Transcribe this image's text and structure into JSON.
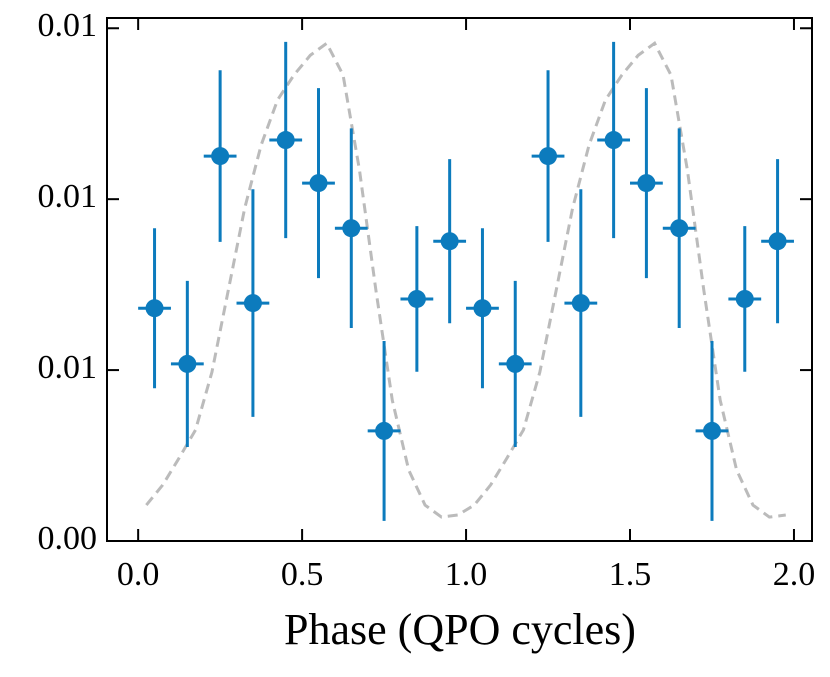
{
  "chart_data": {
    "type": "errorbar",
    "x_label": "Phase (QPO cycles)",
    "xlim": [
      -0.095,
      2.055
    ],
    "ylim": [
      0,
      0.0153
    ],
    "xticks": [
      {
        "value": 0,
        "label": "0.0"
      },
      {
        "value": 0.5,
        "label": "0.5"
      },
      {
        "value": 1,
        "label": "1.0"
      },
      {
        "value": 1.5,
        "label": "1.5"
      },
      {
        "value": 2,
        "label": "2.0"
      }
    ],
    "yticks": [
      {
        "value": 0,
        "label": "0.00"
      },
      {
        "value": 0.005,
        "label": "0.01"
      },
      {
        "value": 0.01,
        "label": "0.01"
      },
      {
        "value": 0.015,
        "label": "0.01"
      }
    ],
    "series": [
      {
        "color": "#0C7BBD",
        "x": [
          0.05,
          0.15,
          0.25,
          0.35,
          0.45,
          0.55,
          0.65,
          0.75,
          0.85,
          0.95,
          1.05,
          1.15,
          1.25,
          1.35,
          1.45,
          1.55,
          1.65,
          1.75,
          1.85,
          1.95
        ],
        "values": [
          0.00681,
          0.00518,
          0.01126,
          0.00696,
          0.01173,
          0.01047,
          0.00915,
          0.00322,
          0.00708,
          0.00877,
          0.00681,
          0.00518,
          0.01126,
          0.00696,
          0.01173,
          0.01047,
          0.00915,
          0.00322,
          0.00708,
          0.00877
        ],
        "errors": [
          0.00234,
          0.00243,
          0.00251,
          0.00333,
          0.00287,
          0.00278,
          0.00292,
          0.00263,
          0.00213,
          0.0024,
          0.00234,
          0.00243,
          0.00251,
          0.00333,
          0.00287,
          0.00278,
          0.00292,
          0.00263,
          0.00213,
          0.0024
        ],
        "xerr": 0.05
      },
      {
        "color": "#bbbbbb",
        "dashed": true,
        "x": [
          0.025,
          0.075,
          0.125,
          0.175,
          0.225,
          0.275,
          0.325,
          0.375,
          0.425,
          0.475,
          0.525,
          0.575,
          0.625,
          0.675,
          0.725,
          0.775,
          0.825,
          0.875,
          0.925,
          0.975,
          1.025,
          1.075,
          1.125,
          1.175,
          1.225,
          1.275,
          1.325,
          1.375,
          1.425,
          1.475,
          1.525,
          1.575,
          1.625,
          1.675,
          1.725,
          1.775,
          1.825,
          1.875,
          1.925,
          1.975
        ],
        "values": [
          0.00105,
          0.00164,
          0.00243,
          0.00325,
          0.00494,
          0.00734,
          0.00974,
          0.01158,
          0.0129,
          0.01363,
          0.01421,
          0.01456,
          0.01363,
          0.01085,
          0.00734,
          0.00412,
          0.00208,
          0.00105,
          0.0007,
          0.00076,
          0.00105,
          0.00164,
          0.00243,
          0.00325,
          0.00494,
          0.00734,
          0.00974,
          0.01158,
          0.0129,
          0.01363,
          0.01421,
          0.01456,
          0.01363,
          0.01085,
          0.00734,
          0.00412,
          0.00208,
          0.00105,
          0.0007,
          0.00076
        ]
      }
    ]
  }
}
